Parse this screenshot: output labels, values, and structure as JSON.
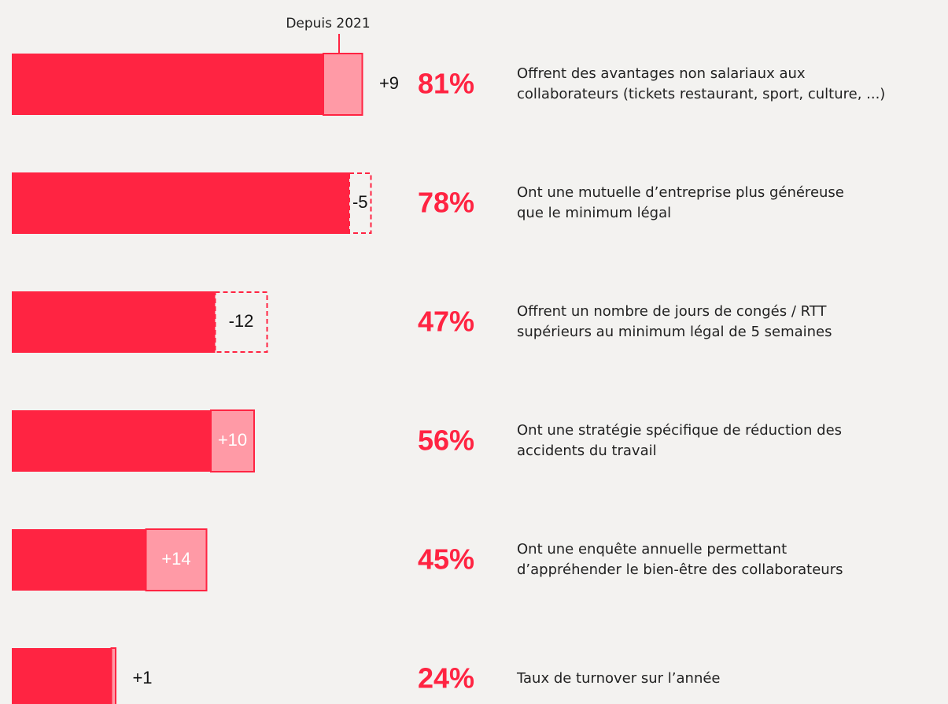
{
  "chart_data": {
    "type": "bar",
    "change_title": "Depuis 2021",
    "categories": [
      [
        "Offrent des avantages non salariaux aux",
        "collaborateurs (tickets restaurant, sport, culture, ...)"
      ],
      [
        "Ont une mutuelle d’entreprise plus généreuse",
        "que le minimum légal"
      ],
      [
        "Offrent un nombre de jours de congés / RTT",
        "supérieurs au minimum légal de 5 semaines"
      ],
      [
        "Ont une stratégie spécifique de réduction des",
        "accidents du travail"
      ],
      [
        "Ont une enquête annuelle permettant",
        "d’appréhender le bien-être des collaborateurs"
      ],
      [
        "Taux de turnover sur l’année"
      ]
    ],
    "values": [
      81,
      78,
      47,
      56,
      45,
      24
    ],
    "value_labels": [
      "81%",
      "78%",
      "47%",
      "56%",
      "45%",
      "24%"
    ],
    "changes": [
      9,
      -5,
      -12,
      10,
      14,
      1
    ],
    "change_labels": [
      "+9",
      "-5",
      "-12",
      "+10",
      "+14",
      "+1"
    ],
    "color": "#ff2442",
    "change_color": "#ff9aa6"
  }
}
